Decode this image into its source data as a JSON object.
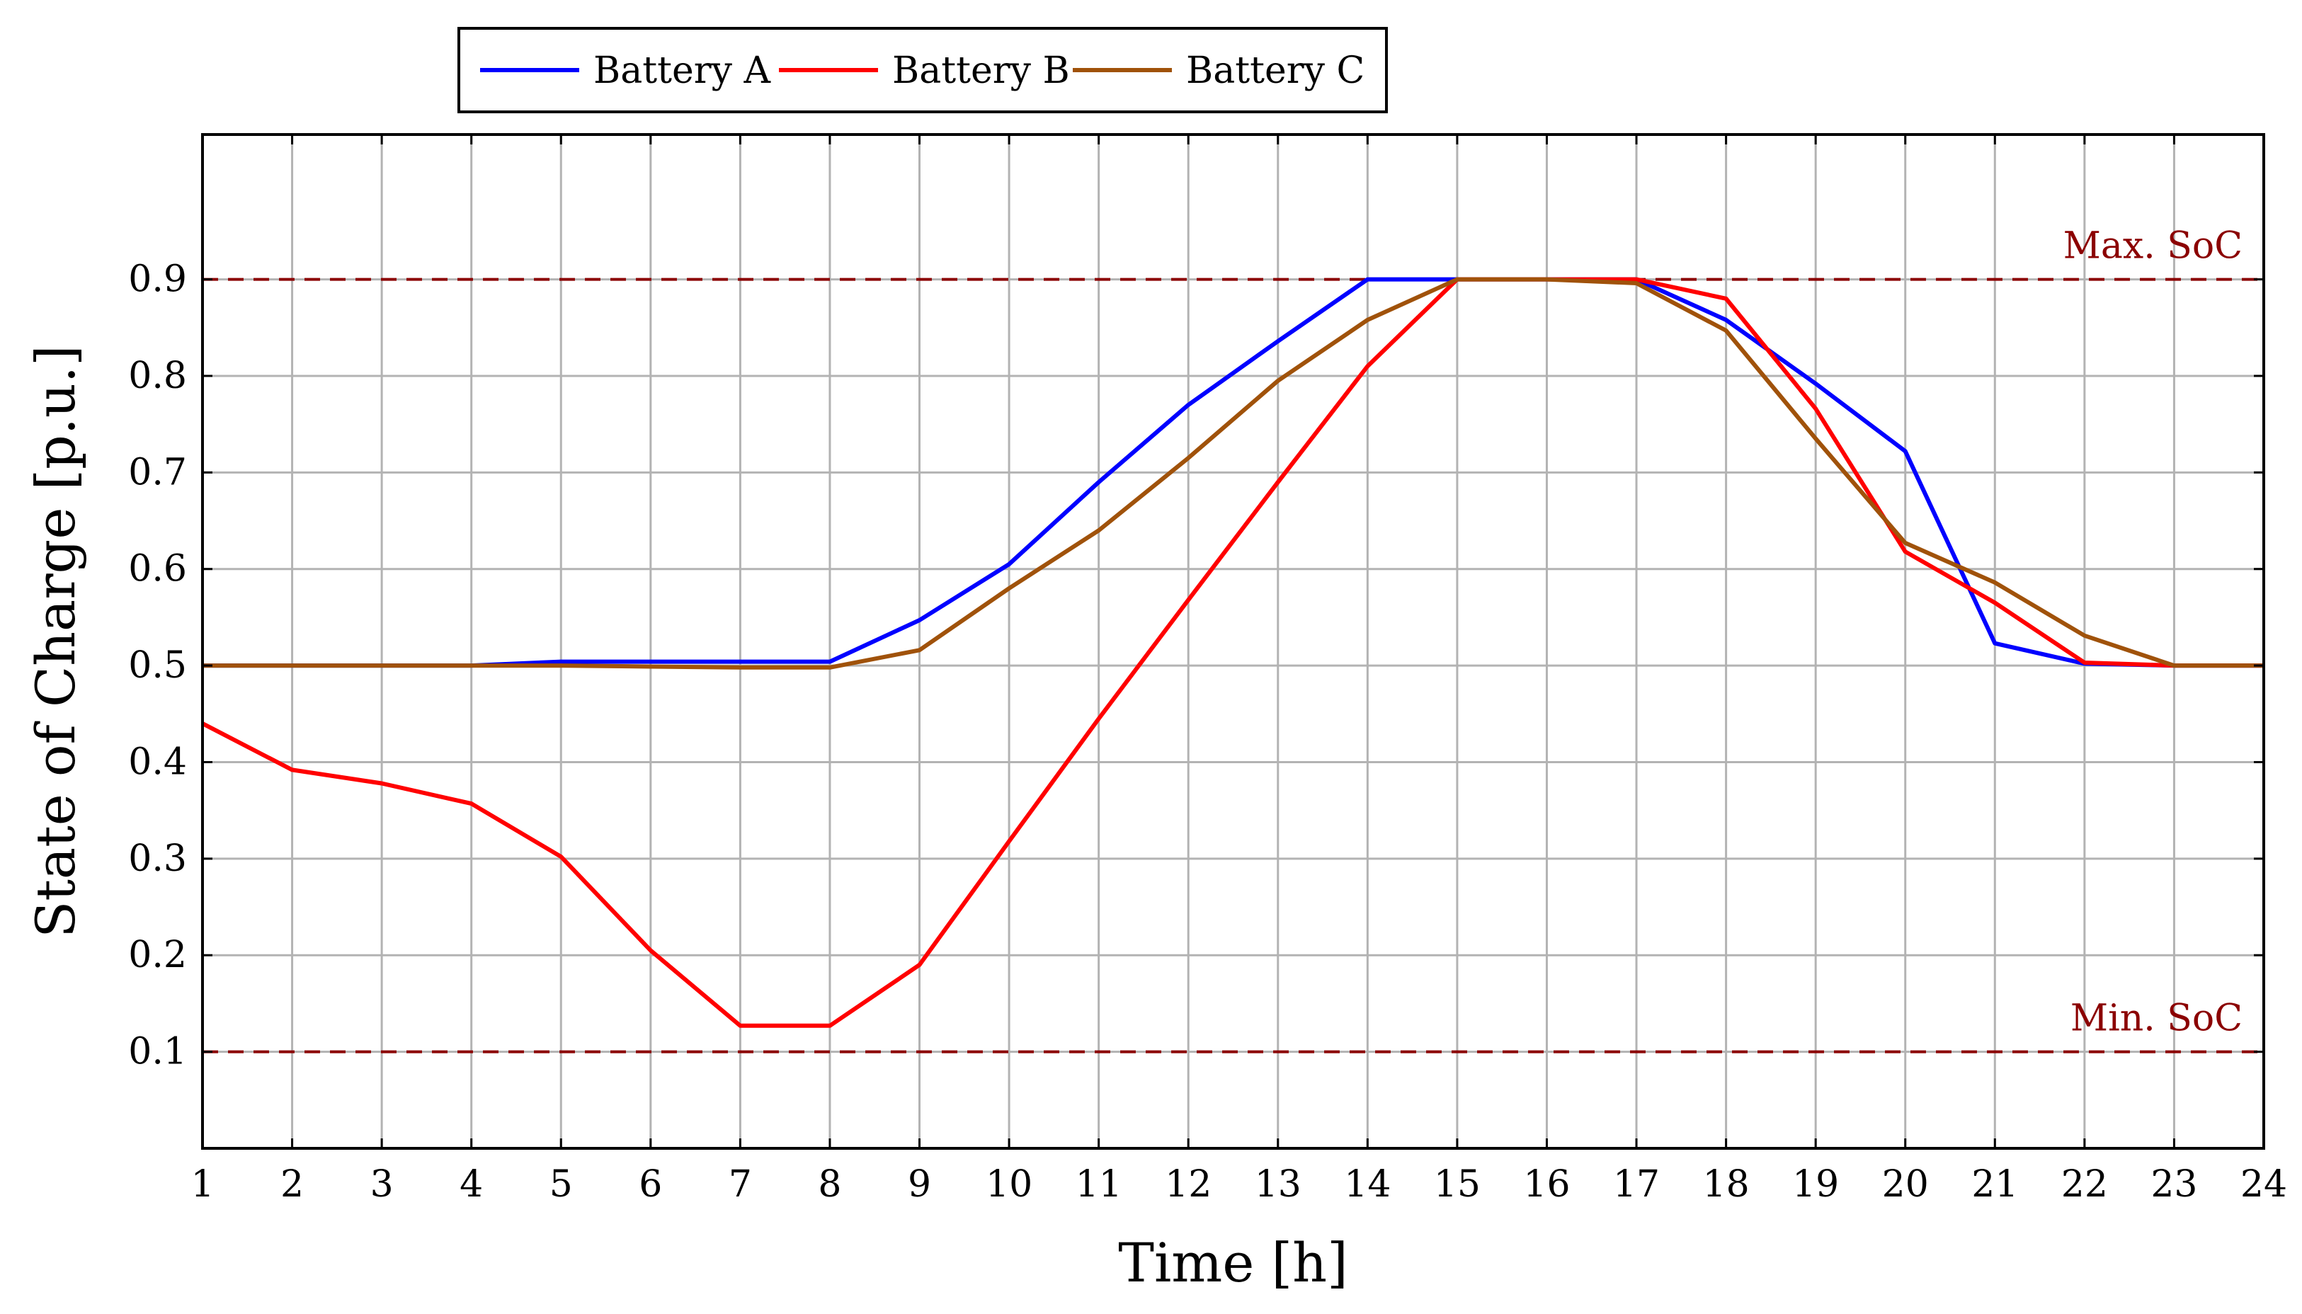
{
  "chart_data": {
    "type": "line",
    "xlabel": "Time [h]",
    "ylabel": "State of Charge [p.u.]",
    "xlim": [
      1,
      24
    ],
    "ylim": [
      0,
      1.05
    ],
    "x_ticks": [
      1,
      2,
      3,
      4,
      5,
      6,
      7,
      8,
      9,
      10,
      11,
      12,
      13,
      14,
      15,
      16,
      17,
      18,
      19,
      20,
      21,
      22,
      23,
      24
    ],
    "y_ticks": [
      0.1,
      0.2,
      0.3,
      0.4,
      0.5,
      0.6,
      0.7,
      0.8,
      0.9
    ],
    "y_tick_labels": [
      "0.1",
      "0.2",
      "0.3",
      "0.4",
      "0.5",
      "0.6",
      "0.7",
      "0.8",
      "0.9"
    ],
    "grid": true,
    "legend_position": "top-left, above plot",
    "x": [
      1,
      2,
      3,
      4,
      5,
      6,
      7,
      8,
      9,
      10,
      11,
      12,
      13,
      14,
      15,
      16,
      17,
      18,
      19,
      20,
      21,
      22,
      23,
      24
    ],
    "series": [
      {
        "name": "Battery A",
        "color": "#0000ff",
        "values": [
          0.5,
          0.5,
          0.5,
          0.5,
          0.504,
          0.504,
          0.504,
          0.504,
          0.547,
          0.605,
          0.69,
          0.77,
          0.836,
          0.9,
          0.9,
          0.9,
          0.9,
          0.858,
          0.792,
          0.722,
          0.523,
          0.502,
          0.5,
          0.5
        ]
      },
      {
        "name": "Battery B",
        "color": "#ff0000",
        "values": [
          0.44,
          0.392,
          0.378,
          0.357,
          0.302,
          0.205,
          0.127,
          0.127,
          0.19,
          0.318,
          0.445,
          0.568,
          0.69,
          0.81,
          0.9,
          0.9,
          0.9,
          0.88,
          0.766,
          0.618,
          0.565,
          0.503,
          0.5,
          0.5
        ]
      },
      {
        "name": "Battery C",
        "color": "#a0520a",
        "values": [
          0.5,
          0.5,
          0.5,
          0.5,
          0.5,
          0.499,
          0.498,
          0.498,
          0.516,
          0.58,
          0.64,
          0.715,
          0.795,
          0.858,
          0.9,
          0.9,
          0.896,
          0.847,
          0.735,
          0.627,
          0.586,
          0.531,
          0.5,
          0.5
        ]
      }
    ],
    "reference_lines": [
      {
        "label": "Max. SoC",
        "y": 0.9,
        "color": "#8b0000"
      },
      {
        "label": "Min. SoC",
        "y": 0.1,
        "color": "#8b0000"
      }
    ]
  }
}
